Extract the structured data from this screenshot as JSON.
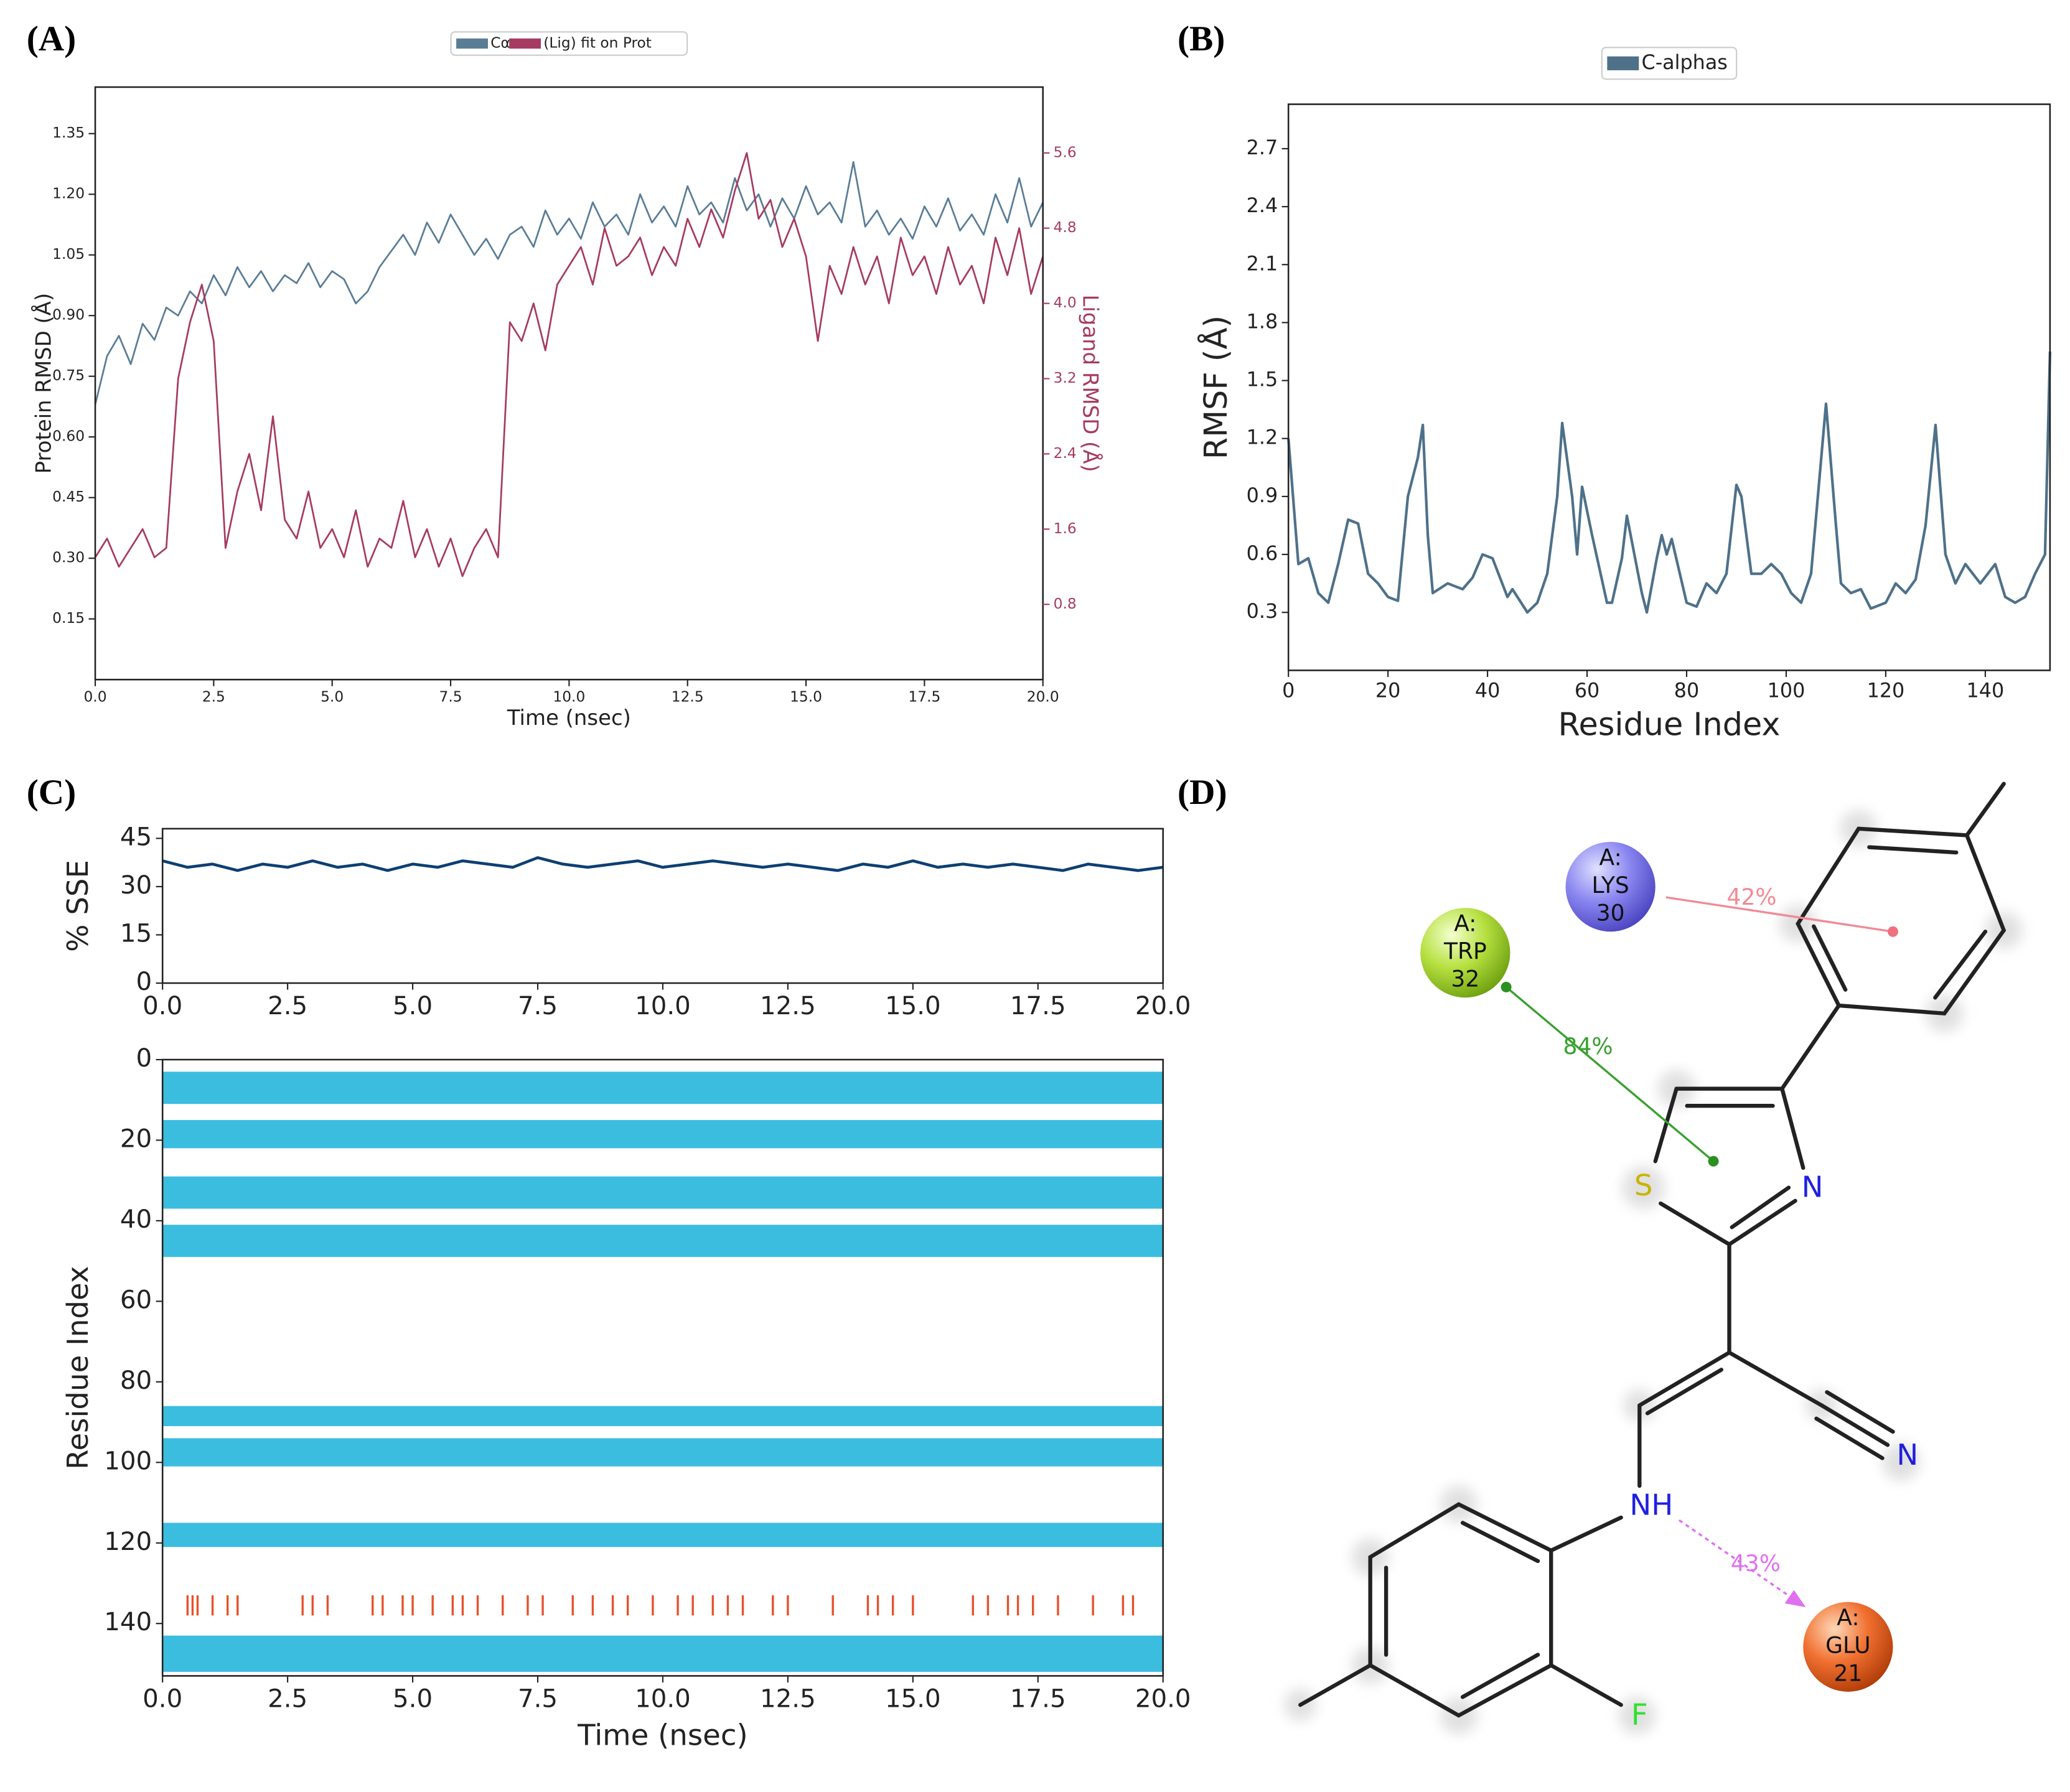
{
  "panel_labels": [
    "(A)",
    "(B)",
    "(C)",
    "(D)"
  ],
  "chart_data": [
    {
      "type": "line",
      "x": [
        0,
        0.25,
        0.5,
        0.75,
        1,
        1.25,
        1.5,
        1.75,
        2,
        2.25,
        2.5,
        2.75,
        3,
        3.25,
        3.5,
        3.75,
        4,
        4.25,
        4.5,
        4.75,
        5,
        5.25,
        5.5,
        5.75,
        6,
        6.25,
        6.5,
        6.75,
        7,
        7.25,
        7.5,
        7.75,
        8,
        8.25,
        8.5,
        8.75,
        9,
        9.25,
        9.5,
        9.75,
        10,
        10.25,
        10.5,
        10.75,
        11,
        11.25,
        11.5,
        11.75,
        12,
        12.25,
        12.5,
        12.75,
        13,
        13.25,
        13.5,
        13.75,
        14,
        14.25,
        14.5,
        14.75,
        15,
        15.25,
        15.5,
        15.75,
        16,
        16.25,
        16.5,
        16.75,
        17,
        17.25,
        17.5,
        17.75,
        18,
        18.25,
        18.5,
        18.75,
        19,
        19.25,
        19.5,
        19.75,
        20
      ],
      "series": [
        {
          "name": "Cα",
          "color": "#5a7d96",
          "values": [
            0.68,
            0.8,
            0.85,
            0.78,
            0.88,
            0.84,
            0.92,
            0.9,
            0.96,
            0.93,
            1.0,
            0.95,
            1.02,
            0.97,
            1.01,
            0.96,
            1.0,
            0.98,
            1.03,
            0.97,
            1.01,
            0.99,
            0.93,
            0.96,
            1.02,
            1.06,
            1.1,
            1.05,
            1.13,
            1.08,
            1.15,
            1.1,
            1.05,
            1.09,
            1.04,
            1.1,
            1.12,
            1.07,
            1.16,
            1.1,
            1.14,
            1.09,
            1.18,
            1.12,
            1.15,
            1.1,
            1.2,
            1.13,
            1.17,
            1.12,
            1.22,
            1.15,
            1.18,
            1.13,
            1.24,
            1.16,
            1.2,
            1.12,
            1.19,
            1.14,
            1.22,
            1.15,
            1.18,
            1.13,
            1.28,
            1.12,
            1.16,
            1.1,
            1.14,
            1.09,
            1.17,
            1.12,
            1.19,
            1.11,
            1.15,
            1.1,
            1.2,
            1.13,
            1.24,
            1.12,
            1.18
          ]
        },
        {
          "name": "(Lig) fit on Prot",
          "color": "#a63b61",
          "axis": "y2",
          "values": [
            1.3,
            1.5,
            1.2,
            1.4,
            1.6,
            1.3,
            1.4,
            3.2,
            3.8,
            4.2,
            3.6,
            1.4,
            2.0,
            2.4,
            1.8,
            2.8,
            1.7,
            1.5,
            2.0,
            1.4,
            1.6,
            1.3,
            1.8,
            1.2,
            1.5,
            1.4,
            1.9,
            1.3,
            1.6,
            1.2,
            1.5,
            1.1,
            1.4,
            1.6,
            1.3,
            3.8,
            3.6,
            4.0,
            3.5,
            4.2,
            4.4,
            4.6,
            4.2,
            4.8,
            4.4,
            4.5,
            4.7,
            4.3,
            4.6,
            4.4,
            4.9,
            4.6,
            5.0,
            4.7,
            5.2,
            5.6,
            4.9,
            5.1,
            4.6,
            4.9,
            4.5,
            3.6,
            4.4,
            4.1,
            4.6,
            4.2,
            4.5,
            4.0,
            4.7,
            4.3,
            4.5,
            4.1,
            4.6,
            4.2,
            4.4,
            4.0,
            4.7,
            4.3,
            4.8,
            4.1,
            4.5
          ]
        }
      ],
      "xlim": [
        0,
        20
      ],
      "xticks": [
        {
          "value": 0,
          "label": "0.0"
        },
        2.5,
        {
          "value": 5,
          "label": "5.0"
        },
        7.5,
        {
          "value": 10,
          "label": "10.0"
        },
        12.5,
        {
          "value": 15,
          "label": "15.0"
        },
        17.5,
        {
          "value": 20,
          "label": "20.0"
        }
      ],
      "ylim": [
        0,
        1.465
      ],
      "yticks": [
        0.15,
        {
          "value": 0.3,
          "label": "0.30"
        },
        0.45,
        {
          "value": 0.6,
          "label": "0.60"
        },
        0.75,
        {
          "value": 0.9,
          "label": "0.90"
        },
        1.05,
        {
          "value": 1.2,
          "label": "1.20"
        },
        1.35
      ],
      "y2lim": [
        0,
        6.3
      ],
      "y2ticks": [
        0.8,
        1.6,
        2.4,
        3.2,
        {
          "value": 4,
          "label": "4.0"
        },
        4.8,
        5.6
      ],
      "xlabel": "Time (nsec)",
      "ylabel": "Protein RMSD (Å)",
      "y2label": "Ligand RMSD (Å)",
      "legend": "top"
    },
    {
      "type": "line",
      "x": [
        0,
        2,
        4,
        6,
        8,
        9,
        10,
        12,
        14,
        16,
        18,
        20,
        22,
        24,
        26,
        27,
        28,
        29,
        32,
        35,
        37,
        39,
        41,
        44,
        45,
        48,
        50,
        52,
        54,
        55,
        57,
        58,
        59,
        61,
        64,
        65,
        67,
        68,
        71,
        72,
        74,
        75,
        76,
        77,
        80,
        82,
        84,
        86,
        88,
        90,
        91,
        93,
        95,
        97,
        99,
        101,
        103,
        105,
        108,
        110,
        111,
        113,
        115,
        117,
        120,
        122,
        124,
        126,
        128,
        130,
        132,
        134,
        136,
        139,
        142,
        144,
        146,
        148,
        150,
        152,
        153
      ],
      "series": [
        {
          "name": "C-alphas",
          "color": "#4e7189",
          "values": [
            1.2,
            0.55,
            0.58,
            0.4,
            0.35,
            0.45,
            0.55,
            0.78,
            0.76,
            0.5,
            0.45,
            0.38,
            0.36,
            0.9,
            1.1,
            1.27,
            0.7,
            0.4,
            0.45,
            0.42,
            0.48,
            0.6,
            0.58,
            0.38,
            0.42,
            0.3,
            0.35,
            0.5,
            0.9,
            1.28,
            0.9,
            0.6,
            0.95,
            0.7,
            0.35,
            0.35,
            0.58,
            0.8,
            0.4,
            0.3,
            0.58,
            0.7,
            0.6,
            0.68,
            0.35,
            0.33,
            0.45,
            0.4,
            0.5,
            0.96,
            0.9,
            0.5,
            0.5,
            0.55,
            0.5,
            0.4,
            0.35,
            0.5,
            1.38,
            0.75,
            0.45,
            0.4,
            0.42,
            0.32,
            0.35,
            0.45,
            0.4,
            0.47,
            0.75,
            1.27,
            0.6,
            0.45,
            0.55,
            0.45,
            0.55,
            0.38,
            0.35,
            0.38,
            0.5,
            0.6,
            1.65
          ]
        }
      ],
      "xlim": [
        0,
        153
      ],
      "xticks": [
        0,
        20,
        40,
        60,
        80,
        100,
        120,
        140
      ],
      "ylim": [
        0,
        2.93
      ],
      "yticks": [
        0.3,
        0.6,
        0.9,
        1.2,
        1.5,
        1.8,
        2.1,
        2.4,
        2.7
      ],
      "xlabel": "Residue Index",
      "ylabel": "RMSF (Å)",
      "legend": "top"
    },
    {
      "type": "line",
      "x": [
        0,
        0.5,
        1,
        1.5,
        2,
        2.5,
        3,
        3.5,
        4,
        4.5,
        5,
        5.5,
        6,
        6.5,
        7,
        7.5,
        8,
        8.5,
        9,
        9.5,
        10,
        10.5,
        11,
        11.5,
        12,
        12.5,
        13,
        13.5,
        14,
        14.5,
        15,
        15.5,
        16,
        16.5,
        17,
        17.5,
        18,
        18.5,
        19,
        19.5,
        20
      ],
      "values": [
        38,
        36,
        37,
        35,
        37,
        36,
        38,
        36,
        37,
        35,
        37,
        36,
        38,
        37,
        36,
        39,
        37,
        36,
        37,
        38,
        36,
        37,
        38,
        37,
        36,
        37,
        36,
        35,
        37,
        36,
        38,
        36,
        37,
        36,
        37,
        36,
        35,
        37,
        36,
        35,
        36
      ],
      "color": "#0d3f73",
      "xlim": [
        0,
        20
      ],
      "xticks": [
        {
          "value": 0,
          "label": "0.0"
        },
        2.5,
        {
          "value": 5,
          "label": "5.0"
        },
        7.5,
        {
          "value": 10,
          "label": "10.0"
        },
        12.5,
        {
          "value": 15,
          "label": "15.0"
        },
        17.5,
        {
          "value": 20,
          "label": "20.0"
        }
      ],
      "ylim": [
        0,
        48
      ],
      "yticks": [
        0,
        15,
        30,
        45
      ],
      "ylabel": "% SSE"
    },
    {
      "type": "sse_map",
      "helix_ranges": [
        [
          3,
          11
        ],
        [
          15,
          22
        ],
        [
          29,
          37
        ],
        [
          41,
          49
        ],
        [
          86,
          91
        ],
        [
          94,
          101
        ],
        [
          115,
          121
        ],
        [
          143,
          152
        ]
      ],
      "helix_color": "#3bbde0",
      "strand_residues": [
        133,
        138
      ],
      "strand_times": [
        0.5,
        0.6,
        0.7,
        1.0,
        1.3,
        1.5,
        2.8,
        3.0,
        3.3,
        4.2,
        4.4,
        4.8,
        5.0,
        5.4,
        5.8,
        6.0,
        6.3,
        6.8,
        7.3,
        7.6,
        8.2,
        8.6,
        9.0,
        9.3,
        9.8,
        10.3,
        10.6,
        11.0,
        11.3,
        11.6,
        12.2,
        12.5,
        13.4,
        14.1,
        14.3,
        14.6,
        15.0,
        16.2,
        16.5,
        16.9,
        17.1,
        17.4,
        17.9,
        18.6,
        19.2,
        19.4
      ],
      "strand_color": "#e8502a",
      "xlim": [
        0,
        20
      ],
      "xticks": [
        {
          "value": 0,
          "label": "0.0"
        },
        2.5,
        {
          "value": 5,
          "label": "5.0"
        },
        7.5,
        {
          "value": 10,
          "label": "10.0"
        },
        12.5,
        {
          "value": 15,
          "label": "15.0"
        },
        17.5,
        {
          "value": 20,
          "label": "20.0"
        }
      ],
      "ylim": [
        0,
        153
      ],
      "y_inverted": true,
      "yticks": [
        0,
        20,
        40,
        60,
        80,
        100,
        120,
        140
      ],
      "xlabel": "Time (nsec)",
      "ylabel": "Residue Index"
    }
  ],
  "diagram": {
    "atoms": [
      "S",
      "N",
      "N",
      "NH",
      "F"
    ],
    "residues": [
      {
        "chain": "A:",
        "name": "LYS",
        "number": "30"
      },
      {
        "chain": "A:",
        "name": "TRP",
        "number": "32"
      },
      {
        "chain": "A:",
        "name": "GLU",
        "number": "21"
      }
    ],
    "interactions": [
      "42%",
      "84%",
      "43%"
    ]
  }
}
